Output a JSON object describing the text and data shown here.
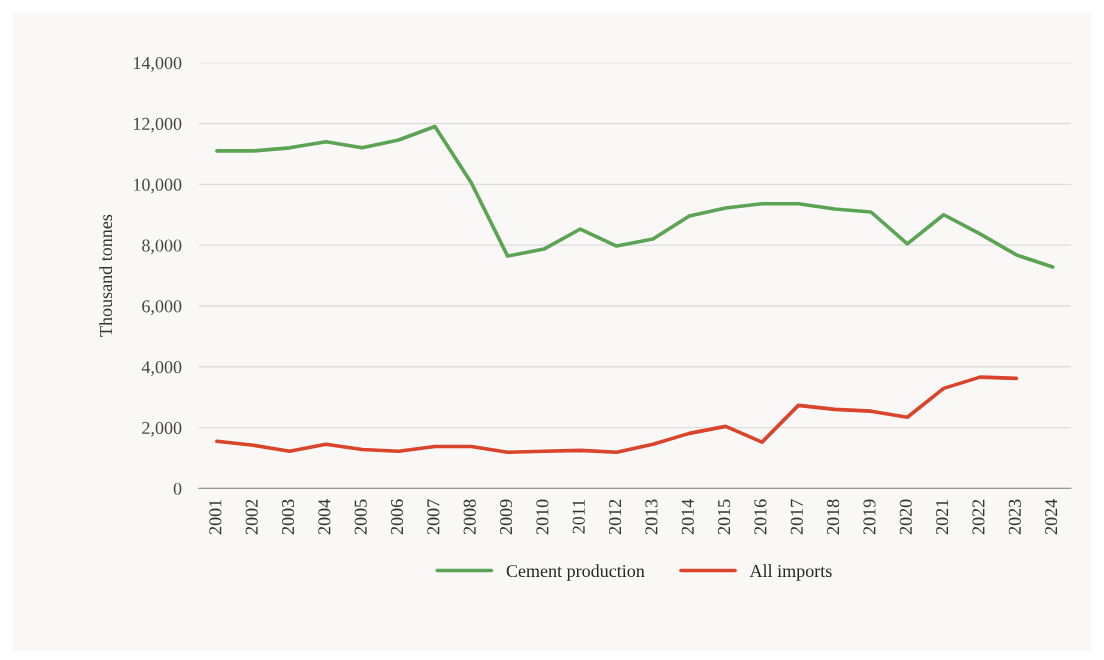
{
  "chart_data": {
    "type": "line",
    "ylabel": "Thousand tonnes",
    "categories": [
      "2001",
      "2002",
      "2003",
      "2004",
      "2005",
      "2006",
      "2007",
      "2008",
      "2009",
      "2010",
      "2011",
      "2012",
      "2013",
      "2014",
      "2015",
      "2016",
      "2017",
      "2018",
      "2019",
      "2020",
      "2021",
      "2022",
      "2023",
      "2024"
    ],
    "series": [
      {
        "name": "Cement production",
        "color": "#5ba453",
        "values": [
          11100,
          11100,
          11200,
          11400,
          11200,
          11460,
          11900,
          10050,
          7640,
          7870,
          8530,
          7970,
          8200,
          8960,
          9220,
          9360,
          9360,
          9190,
          9090,
          8040,
          9000,
          8370,
          7680,
          7280
        ]
      },
      {
        "name": "All imports",
        "color": "#d9442a",
        "values": [
          1550,
          1420,
          1220,
          1450,
          1280,
          1220,
          1380,
          1380,
          1190,
          1220,
          1250,
          1190,
          1450,
          1810,
          2040,
          1520,
          2730,
          2600,
          2540,
          2340,
          3290,
          3660,
          3620,
          null
        ]
      }
    ],
    "ylim": [
      0,
      14000
    ],
    "yticks": [
      {
        "value": 0,
        "label": "0"
      },
      {
        "value": 2000,
        "label": "2,000"
      },
      {
        "value": 4000,
        "label": "4,000"
      },
      {
        "value": 6000,
        "label": "6,000"
      },
      {
        "value": 8000,
        "label": "8,000"
      },
      {
        "value": 10000,
        "label": "10,000"
      },
      {
        "value": 12000,
        "label": "12,000"
      },
      {
        "value": 14000,
        "label": "14,000"
      }
    ],
    "grid": "y",
    "legend": "bottom",
    "marker": "none",
    "line_style": "solid"
  }
}
